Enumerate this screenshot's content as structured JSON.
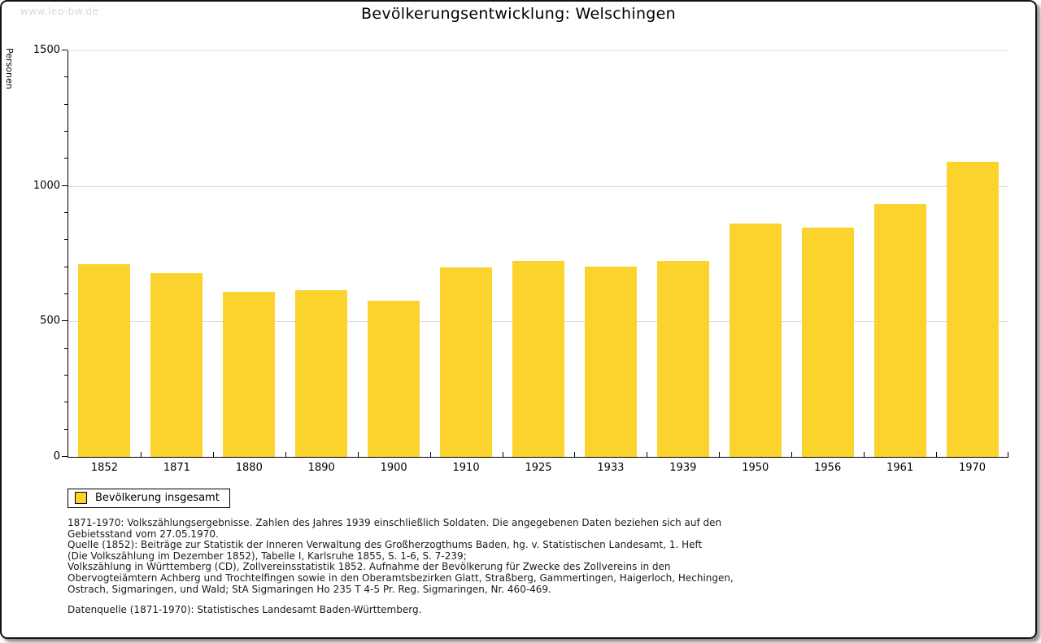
{
  "watermark": "www.leo-bw.de",
  "chart_data": {
    "type": "bar",
    "title": "Bevölkerungsentwicklung: Welschingen",
    "xlabel": "",
    "ylabel": "Personen",
    "categories": [
      "1852",
      "1871",
      "1880",
      "1890",
      "1900",
      "1910",
      "1925",
      "1933",
      "1939",
      "1950",
      "1956",
      "1961",
      "1970"
    ],
    "values": [
      712,
      678,
      610,
      614,
      576,
      698,
      724,
      701,
      722,
      861,
      845,
      932,
      1090
    ],
    "ylim": [
      0,
      1500
    ],
    "y_major_ticks": [
      0,
      500,
      1000,
      1500
    ],
    "y_minor_tick_step": 100,
    "grid": "horizontal-at-major-ticks",
    "legend": [
      "Bevölkerung insgesamt"
    ],
    "legend_position": "bottom-left",
    "bar_color": "#FCD32D",
    "grid_color": "#DDDDDD",
    "axis_color": "#000000"
  },
  "footnotes": {
    "lines": [
      "1871-1970: Volkszählungsergebnisse. Zahlen des Jahres 1939 einschließlich Soldaten. Die angegebenen Daten beziehen sich auf den",
      "Gebietsstand vom 27.05.1970.",
      "Quelle (1852): Beiträge zur Statistik der Inneren Verwaltung des Großherzogthums Baden, hg. v. Statistischen Landesamt, 1. Heft",
      "(Die Volkszählung im Dezember 1852), Tabelle I, Karlsruhe 1855, S. 1-6, S. 7-239;",
      "Volkszählung in Württemberg (CD), Zollvereinsstatistik 1852. Aufnahme der Bevölkerung für Zwecke des Zollvereins in den",
      "Obervogteiämtern Achberg und Trochtelfingen sowie in den Oberamtsbezirken Glatt, Straßberg, Gammertingen, Haigerloch, Hechingen,",
      "Ostrach, Sigmaringen, und Wald; StA Sigmaringen Ho 235 T 4-5 Pr. Reg. Sigmaringen, Nr. 460-469."
    ],
    "datasource": "Datenquelle (1871-1970): Statistisches Landesamt Baden-Württemberg."
  }
}
